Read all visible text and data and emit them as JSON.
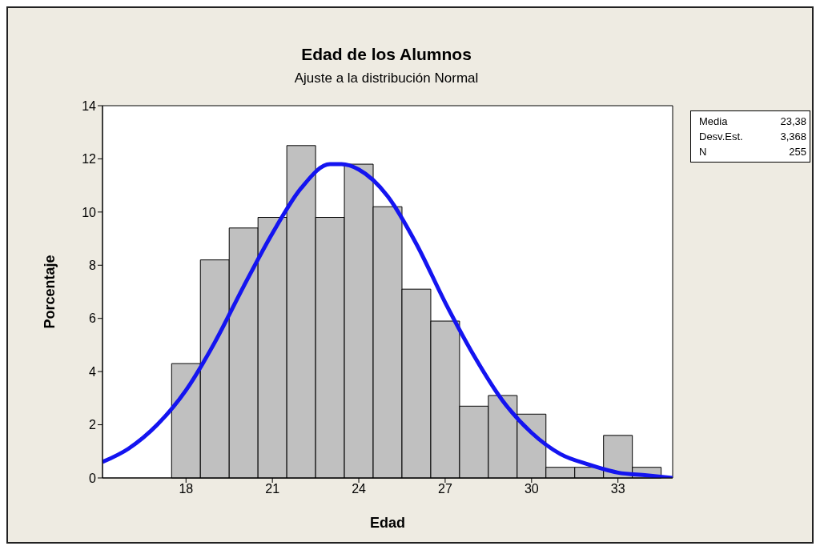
{
  "chart_data": {
    "type": "histogram",
    "title": "Edad de los Alumnos",
    "subtitle": "Ajuste a la distribución Normal",
    "xlabel": "Edad",
    "ylabel": "Porcentaje",
    "bins": [
      17.5,
      18.5,
      19.5,
      20.5,
      21.5,
      22.5,
      23.5,
      24.5,
      25.5,
      26.5,
      27.5,
      28.5,
      29.5,
      30.5,
      31.5,
      32.5,
      33.5,
      34.5
    ],
    "values": [
      4.3,
      8.2,
      9.4,
      9.8,
      12.5,
      9.8,
      11.8,
      10.2,
      7.1,
      5.9,
      2.7,
      3.1,
      2.4,
      0.4,
      0.4,
      1.6,
      0.4
    ],
    "color": "#c0c0c0",
    "series": [
      {
        "type": "line",
        "color": "#1414f0",
        "x": [
          15.1,
          16,
          17,
          18,
          19,
          20,
          21,
          22,
          23,
          23.4,
          24,
          25,
          26,
          27,
          28,
          29,
          30,
          31,
          32,
          33,
          34,
          34.9
        ],
        "values": [
          0.6,
          1.1,
          2.0,
          3.3,
          5.1,
          7.2,
          9.2,
          10.9,
          11.8,
          11.8,
          11.6,
          10.6,
          8.8,
          6.6,
          4.6,
          2.9,
          1.7,
          0.9,
          0.5,
          0.2,
          0.1,
          0.0
        ]
      }
    ],
    "xlim": [
      15.1,
      34.9
    ],
    "xticks": [
      18,
      21,
      24,
      27,
      30,
      33
    ],
    "ylim": [
      0,
      14
    ],
    "yticks": [
      0,
      2,
      4,
      6,
      8,
      10,
      12,
      14
    ],
    "grid": false,
    "marker": "none",
    "line_style": "solid",
    "annotations": [
      "Media 23,38",
      "Desv.Est. 3,368",
      "N 255"
    ]
  }
}
